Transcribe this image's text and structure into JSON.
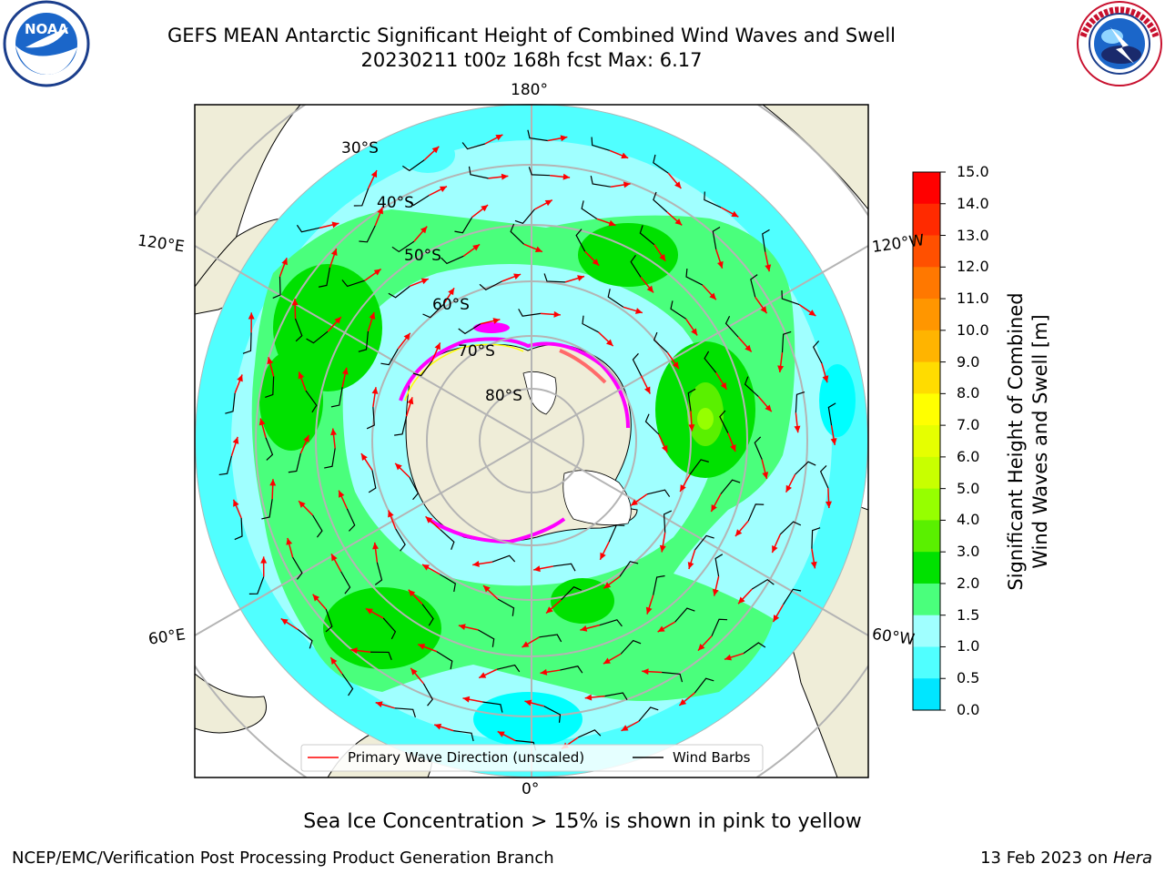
{
  "title": {
    "line1": "GEFS MEAN Antarctic Significant Height of Combined Wind Waves and Swell",
    "line2": "20230211 t00z 168h fcst   Max: 6.17"
  },
  "logos": {
    "left": {
      "text": "NOAA",
      "ring_text": "NATIONAL OCEANIC AND ATMOSPHERIC ADMINISTRATION · U.S. DEPARTMENT OF COMMERCE"
    },
    "right": {
      "ring_text": "NATIONAL WEATHER SERVICE"
    }
  },
  "map": {
    "projection": "south-polar-stereographic",
    "longitude_labels": {
      "top": "180°",
      "bottom": "0°",
      "left_upper": "120°E",
      "left_lower": "60°E",
      "right_upper": "120°W",
      "right_lower": "60°W"
    },
    "latitude_labels": [
      "30°S",
      "40°S",
      "50°S",
      "60°S",
      "70°S",
      "80°S"
    ],
    "colors": {
      "land": "#efedd8",
      "gridline": "#b4b4b4",
      "wave_arrow": "#ff0000",
      "wind_barb": "#000000",
      "sea_ice": [
        "#ff00ff",
        "#ff6a6a",
        "#ffff00"
      ]
    },
    "legend": {
      "wave_label": "Primary Wave Direction (unscaled)",
      "barb_label": "Wind Barbs"
    }
  },
  "colorbar": {
    "label_line1": "Significant Height of Combined",
    "label_line2": "Wind Waves and Swell [m]",
    "ticks": [
      "15.0",
      "14.0",
      "13.0",
      "12.0",
      "11.0",
      "10.0",
      "9.0",
      "8.0",
      "7.0",
      "6.0",
      "5.0",
      "4.0",
      "3.0",
      "2.0",
      "1.5",
      "1.0",
      "0.5",
      "0.0"
    ],
    "colors": [
      "#ff0000",
      "#ff2a00",
      "#ff5000",
      "#ff7800",
      "#ff9600",
      "#ffb400",
      "#ffdc00",
      "#ffff00",
      "#e6ff00",
      "#c8ff00",
      "#96ff00",
      "#5af000",
      "#00e100",
      "#4aff7c",
      "#a0ffff",
      "#50ffff",
      "#00e6ff",
      "#0078ff",
      "#0000ff"
    ]
  },
  "caption": "Sea Ice Concentration > 15% is shown in pink to yellow",
  "footer": {
    "left": "NCEP/EMC/Verification Post Processing Product Generation Branch",
    "right_date": "13 Feb 2023 on ",
    "right_host": "Hera"
  }
}
